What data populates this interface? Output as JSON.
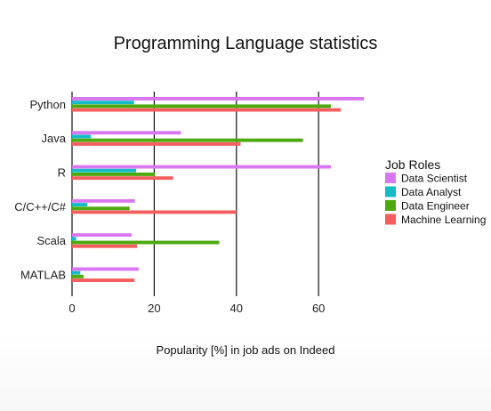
{
  "chart_data": {
    "type": "bar",
    "orientation": "horizontal",
    "title": "Programming Language statistics",
    "xlabel": "Popularity [%] in job ads on Indeed",
    "ylabel": "",
    "categories": [
      "Python",
      "Java",
      "R",
      "C/C++/C#",
      "Scala",
      "MATLAB"
    ],
    "xlim": [
      0,
      71
    ],
    "xticks": [
      0,
      20,
      40,
      60
    ],
    "grid": "vertical",
    "legend_title": "Job Roles",
    "legend_position": "right",
    "series": [
      {
        "name": "Data Scientist",
        "color": "#d977f2",
        "values": [
          71,
          26.5,
          63,
          15.3,
          14.5,
          16.2
        ]
      },
      {
        "name": "Data Analyst",
        "color": "#12bcc9",
        "values": [
          15.1,
          4.6,
          15.6,
          3.7,
          1.0,
          2.0
        ]
      },
      {
        "name": "Data Engineer",
        "color": "#4caa0f",
        "values": [
          63,
          56.2,
          20.2,
          14,
          35.8,
          2.8
        ]
      },
      {
        "name": "Machine Learning",
        "color": "#f55e5e",
        "values": [
          65.4,
          41,
          24.6,
          40,
          15.8,
          15.2
        ]
      }
    ]
  }
}
